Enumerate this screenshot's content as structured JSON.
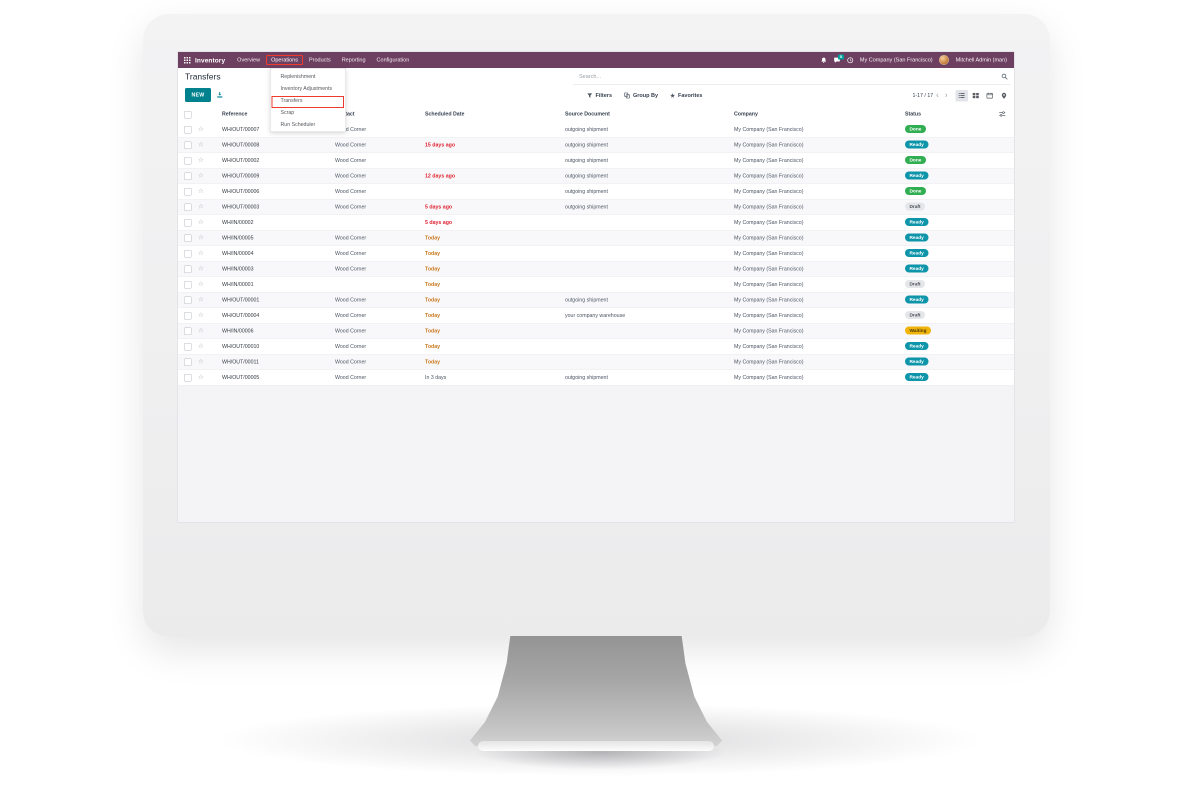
{
  "topbar": {
    "app": "Inventory",
    "menus": [
      "Overview",
      "Operations",
      "Products",
      "Reporting",
      "Configuration"
    ],
    "highlighted_menu": "Operations",
    "message_count": "5",
    "company": "My Company (San Francisco)",
    "user": "Mitchell Admin (man)"
  },
  "dropdown": {
    "items": [
      "Replenishment",
      "Inventory Adjustments",
      "Transfers",
      "Scrap",
      "Run Scheduler"
    ],
    "highlighted": "Transfers"
  },
  "control_panel": {
    "title": "Transfers",
    "new_button": "NEW",
    "search_placeholder": "Search...",
    "filters": "Filters",
    "group_by": "Group By",
    "favorites": "Favorites",
    "pagination": "1-17 / 17"
  },
  "table": {
    "headers": [
      "Reference",
      "Contact",
      "Scheduled Date",
      "Source Document",
      "Company",
      "Status"
    ],
    "rows": [
      {
        "reference": "WH/OUT/00007",
        "contact": "Wood Corner",
        "scheduled_date": "",
        "date_class": "",
        "source_document": "outgoing shipment",
        "company": "My Company (San Francisco)",
        "status": "Done",
        "status_class": "success"
      },
      {
        "reference": "WH/OUT/00008",
        "contact": "Wood Corner",
        "scheduled_date": "15 days ago",
        "date_class": "late",
        "source_document": "outgoing shipment",
        "company": "My Company (San Francisco)",
        "status": "Ready",
        "status_class": "info"
      },
      {
        "reference": "WH/OUT/00002",
        "contact": "Wood Corner",
        "scheduled_date": "",
        "date_class": "",
        "source_document": "outgoing shipment",
        "company": "My Company (San Francisco)",
        "status": "Done",
        "status_class": "success"
      },
      {
        "reference": "WH/OUT/00009",
        "contact": "Wood Corner",
        "scheduled_date": "12 days ago",
        "date_class": "late",
        "source_document": "outgoing shipment",
        "company": "My Company (San Francisco)",
        "status": "Ready",
        "status_class": "info"
      },
      {
        "reference": "WH/OUT/00006",
        "contact": "Wood Corner",
        "scheduled_date": "",
        "date_class": "",
        "source_document": "outgoing shipment",
        "company": "My Company (San Francisco)",
        "status": "Done",
        "status_class": "success"
      },
      {
        "reference": "WH/OUT/00003",
        "contact": "Wood Corner",
        "scheduled_date": "5 days ago",
        "date_class": "late",
        "source_document": "outgoing shipment",
        "company": "My Company (San Francisco)",
        "status": "Draft",
        "status_class": "muted"
      },
      {
        "reference": "WH/IN/00002",
        "contact": "",
        "scheduled_date": "5 days ago",
        "date_class": "late",
        "source_document": "",
        "company": "My Company (San Francisco)",
        "status": "Ready",
        "status_class": "info"
      },
      {
        "reference": "WH/IN/00005",
        "contact": "Wood Corner",
        "scheduled_date": "Today",
        "date_class": "today",
        "source_document": "",
        "company": "My Company (San Francisco)",
        "status": "Ready",
        "status_class": "info"
      },
      {
        "reference": "WH/IN/00004",
        "contact": "Wood Corner",
        "scheduled_date": "Today",
        "date_class": "today",
        "source_document": "",
        "company": "My Company (San Francisco)",
        "status": "Ready",
        "status_class": "info"
      },
      {
        "reference": "WH/IN/00003",
        "contact": "Wood Corner",
        "scheduled_date": "Today",
        "date_class": "today",
        "source_document": "",
        "company": "My Company (San Francisco)",
        "status": "Ready",
        "status_class": "info"
      },
      {
        "reference": "WH/IN/00001",
        "contact": "",
        "scheduled_date": "Today",
        "date_class": "today",
        "source_document": "",
        "company": "My Company (San Francisco)",
        "status": "Draft",
        "status_class": "muted"
      },
      {
        "reference": "WH/OUT/00001",
        "contact": "Wood Corner",
        "scheduled_date": "Today",
        "date_class": "today",
        "source_document": "outgoing shipment",
        "company": "My Company (San Francisco)",
        "status": "Ready",
        "status_class": "info"
      },
      {
        "reference": "WH/OUT/00004",
        "contact": "Wood Corner",
        "scheduled_date": "Today",
        "date_class": "today",
        "source_document": "your company warehouse",
        "company": "My Company (San Francisco)",
        "status": "Draft",
        "status_class": "muted"
      },
      {
        "reference": "WH/IN/00006",
        "contact": "Wood Corner",
        "scheduled_date": "Today",
        "date_class": "today",
        "source_document": "",
        "company": "My Company (San Francisco)",
        "status": "Waiting",
        "status_class": "warning"
      },
      {
        "reference": "WH/OUT/00010",
        "contact": "Wood Corner",
        "scheduled_date": "Today",
        "date_class": "today",
        "source_document": "",
        "company": "My Company (San Francisco)",
        "status": "Ready",
        "status_class": "info"
      },
      {
        "reference": "WH/OUT/00011",
        "contact": "Wood Corner",
        "scheduled_date": "Today",
        "date_class": "today",
        "source_document": "",
        "company": "My Company (San Francisco)",
        "status": "Ready",
        "status_class": "info"
      },
      {
        "reference": "WH/OUT/00005",
        "contact": "Wood Corner",
        "scheduled_date": "In 3 days",
        "date_class": "",
        "source_document": "outgoing shipment",
        "company": "My Company (San Francisco)",
        "status": "Ready",
        "status_class": "info"
      }
    ]
  },
  "icons": {
    "star_outline": "☆",
    "favorites_star": "★",
    "chevron_left": "‹",
    "chevron_right": "›"
  },
  "colors": {
    "topbar": "#6d4061",
    "accent_teal": "#00828e",
    "annotation_red": "#ee3b2d",
    "status_done": "#31ad52",
    "status_ready": "#0e95aa",
    "status_draft": "#e4e6ea",
    "status_waiting": "#f0b40b",
    "date_late": "#e02330",
    "date_today": "#c9791f"
  }
}
